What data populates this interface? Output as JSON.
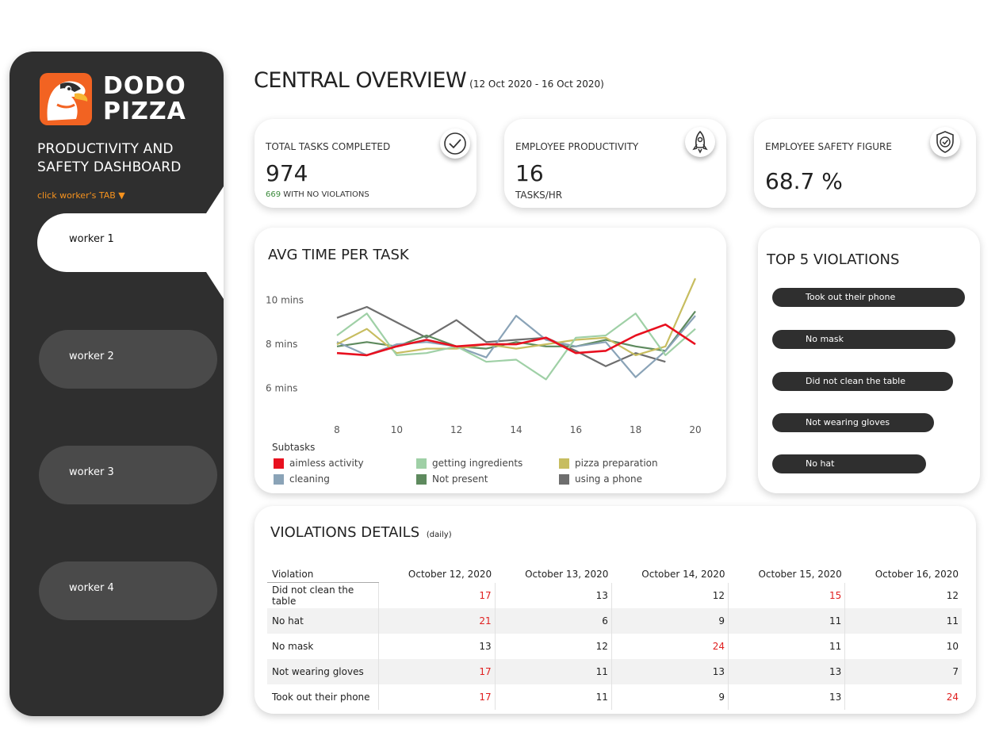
{
  "sidebar": {
    "logo_line1": "DODO",
    "logo_line2": "PIZZA",
    "title_line1": "PRODUCTIVITY AND",
    "title_line2": "SAFETY DASHBOARD",
    "tab_hint": "click worker's TAB ▼",
    "workers": [
      "worker 1",
      "worker 2",
      "worker 3",
      "worker 4"
    ],
    "active_worker": "worker 1"
  },
  "header": {
    "title": "CENTRAL OVERVIEW",
    "date_range": "(12 Oct 2020 - 16 Oct 2020)"
  },
  "kpis": {
    "tasks": {
      "label": "TOTAL TASKS COMPLETED",
      "value": "974",
      "sub_count": "669",
      "sub_text": "WITH NO VIOLATIONS",
      "icon": "check-icon"
    },
    "productivity": {
      "label": "EMPLOYEE PRODUCTIVITY",
      "value": "16",
      "sub_text": "TASKS/HR",
      "icon": "rocket-icon"
    },
    "safety": {
      "label": "EMPLOYEE SAFETY FIGURE",
      "value": "68.7 %",
      "icon": "shield-check-icon"
    }
  },
  "avg_time": {
    "title": "AVG TIME PER TASK",
    "legend_title": "Subtasks"
  },
  "chart_data": {
    "type": "line",
    "title": "AVG TIME PER TASK",
    "xlabel": "",
    "ylabel": "",
    "x": [
      8,
      9,
      10,
      11,
      12,
      13,
      14,
      15,
      16,
      17,
      18,
      19,
      20
    ],
    "x_ticks": [
      "8",
      "10",
      "12",
      "14",
      "16",
      "18",
      "20"
    ],
    "y_ticks": [
      "6 mins",
      "8 mins",
      "10 mins"
    ],
    "y_tick_values": [
      6,
      8,
      10
    ],
    "ylim": [
      4.5,
      11
    ],
    "xlim": [
      8,
      20
    ],
    "legend_title": "Subtasks",
    "legend_position": "bottom",
    "series": [
      {
        "name": "aimless activity",
        "color": "#e8101f",
        "values": [
          7.6,
          7.5,
          7.9,
          8.2,
          7.9,
          8.0,
          8.0,
          8.3,
          7.6,
          7.7,
          8.4,
          8.9,
          8.0
        ]
      },
      {
        "name": "getting ingredients",
        "color": "#9fd0a6",
        "values": [
          8.4,
          9.4,
          7.5,
          7.6,
          7.9,
          7.2,
          7.3,
          6.4,
          8.3,
          8.4,
          9.4,
          7.5,
          8.7
        ]
      },
      {
        "name": "pizza preparation",
        "color": "#c7bd60",
        "values": [
          8.0,
          8.7,
          7.6,
          7.8,
          7.8,
          8.0,
          7.8,
          8.0,
          8.2,
          8.3,
          7.5,
          7.9,
          11.0
        ]
      },
      {
        "name": "cleaning",
        "color": "#8aa3b7",
        "values": [
          8.1,
          7.5,
          8.0,
          8.1,
          7.9,
          7.4,
          9.3,
          8.2,
          7.9,
          8.1,
          6.5,
          7.7,
          9.3
        ]
      },
      {
        "name": "Not present",
        "color": "#5e8a5e",
        "values": [
          7.9,
          8.1,
          7.9,
          8.4,
          7.9,
          7.8,
          8.1,
          7.9,
          7.9,
          8.2,
          7.9,
          7.7,
          9.5
        ]
      },
      {
        "name": "using a phone",
        "color": "#6e6e6e",
        "values": [
          9.2,
          9.7,
          9.0,
          8.3,
          9.1,
          8.1,
          8.2,
          8.3,
          7.7,
          7.0,
          7.6,
          7.2,
          null
        ]
      }
    ]
  },
  "top_violations": {
    "title": "TOP 5 VIOLATIONS",
    "items": [
      {
        "label": "Took out their phone",
        "value": 100
      },
      {
        "label": "No mask",
        "value": 95
      },
      {
        "label": "Did not clean the table",
        "value": 94
      },
      {
        "label": "Not wearing gloves",
        "value": 84
      },
      {
        "label": "No hat",
        "value": 80
      }
    ]
  },
  "violations_details": {
    "title": "VIOLATIONS DETAILS",
    "subtitle": "(daily)",
    "columns": [
      "Violation",
      "October 12, 2020",
      "October 13, 2020",
      "October 14, 2020",
      "October 15, 2020",
      "October 16, 2020"
    ],
    "rows": [
      {
        "label": "Did not clean the table",
        "values": [
          "17",
          "13",
          "12",
          "15",
          "12"
        ],
        "highlight": [
          true,
          false,
          false,
          true,
          false
        ]
      },
      {
        "label": "No hat",
        "values": [
          "21",
          "6",
          "9",
          "11",
          "11"
        ],
        "highlight": [
          true,
          false,
          false,
          false,
          false
        ]
      },
      {
        "label": "No mask",
        "values": [
          "13",
          "12",
          "24",
          "11",
          "10"
        ],
        "highlight": [
          false,
          false,
          true,
          false,
          false
        ]
      },
      {
        "label": "Not wearing gloves",
        "values": [
          "17",
          "11",
          "13",
          "13",
          "7"
        ],
        "highlight": [
          true,
          false,
          false,
          false,
          false
        ]
      },
      {
        "label": "Took out their phone",
        "values": [
          "17",
          "11",
          "9",
          "13",
          "24"
        ],
        "highlight": [
          true,
          false,
          false,
          false,
          true
        ]
      }
    ],
    "highlight_color": "#e02020"
  }
}
